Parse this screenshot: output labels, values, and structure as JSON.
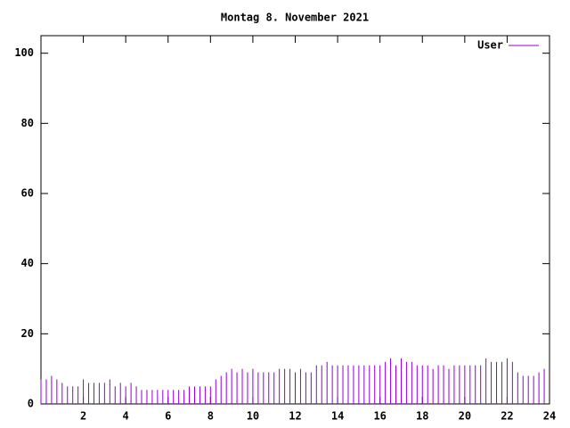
{
  "chart_data": {
    "type": "impulses",
    "title": "Montag 8. November 2021",
    "x": [
      0,
      0.25,
      0.5,
      0.75,
      1,
      1.25,
      1.5,
      1.75,
      2,
      2.25,
      2.5,
      2.75,
      3,
      3.25,
      3.5,
      3.75,
      4,
      4.25,
      4.5,
      4.75,
      5,
      5.25,
      5.5,
      5.75,
      6,
      6.25,
      6.5,
      6.75,
      7,
      7.25,
      7.5,
      7.75,
      8,
      8.25,
      8.5,
      8.75,
      9,
      9.25,
      9.5,
      9.75,
      10,
      10.25,
      10.5,
      10.75,
      11,
      11.25,
      11.5,
      11.75,
      12,
      12.25,
      12.5,
      12.75,
      13,
      13.25,
      13.5,
      13.75,
      14,
      14.25,
      14.5,
      14.75,
      15,
      15.25,
      15.5,
      15.75,
      16,
      16.25,
      16.5,
      16.75,
      17,
      17.25,
      17.5,
      17.75,
      18,
      18.25,
      18.5,
      18.75,
      19,
      19.25,
      19.5,
      19.75,
      20,
      20.25,
      20.5,
      20.75,
      21,
      21.25,
      21.5,
      21.75,
      22,
      22.25,
      22.5,
      22.75,
      23,
      23.25,
      23.5,
      23.75
    ],
    "series": [
      {
        "name": "User",
        "color": "#9400d3",
        "values": [
          7,
          7,
          8,
          7,
          6,
          5,
          5,
          5,
          7,
          6,
          6,
          6,
          6,
          7,
          5,
          6,
          5,
          6,
          5,
          4,
          4,
          4,
          4,
          4,
          4,
          4,
          4,
          4,
          5,
          5,
          5,
          5,
          5,
          7,
          8,
          9,
          10,
          9,
          10,
          9,
          10,
          9,
          9,
          9,
          9,
          10,
          10,
          10,
          9,
          10,
          9,
          9,
          11,
          11,
          12,
          11,
          11,
          11,
          11,
          11,
          11,
          11,
          11,
          11,
          11,
          12,
          13,
          11,
          13,
          12,
          12,
          11,
          11,
          11,
          10,
          11,
          11,
          10,
          11,
          11,
          11,
          11,
          11,
          11,
          13,
          12,
          12,
          12,
          13,
          12,
          9,
          8,
          8,
          8,
          9,
          10
        ]
      }
    ],
    "xlim": [
      0,
      24
    ],
    "xticks": [
      2,
      4,
      6,
      8,
      10,
      12,
      14,
      16,
      18,
      20,
      22,
      24
    ],
    "ylim": [
      0,
      105
    ],
    "yticks": [
      0,
      20,
      40,
      60,
      80,
      100
    ],
    "legend": "top-right"
  }
}
